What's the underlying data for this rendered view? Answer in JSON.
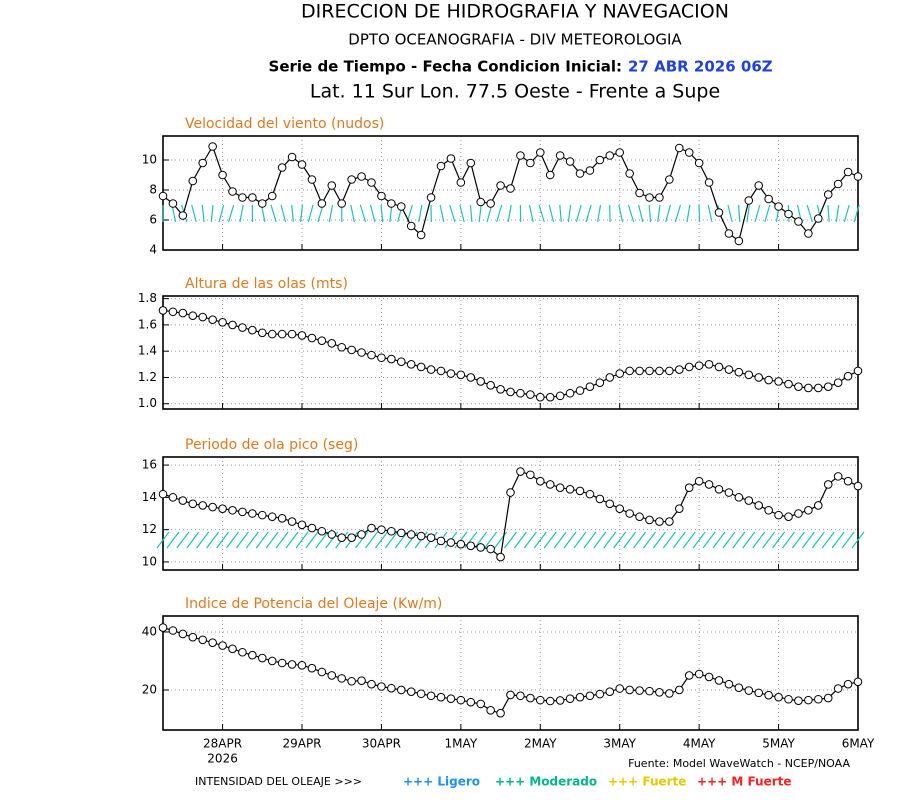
{
  "header": {
    "title": "DIRECCION DE HIDROGRAFIA Y NAVEGACION",
    "subtitle": "DPTO OCEANOGRAFIA - DIV METEOROLOGIA",
    "series_label": "Serie de Tiempo - Fecha Condicion Inicial:",
    "init_date": "27 ABR 2026 06Z",
    "location": "Lat. 11 Sur  Lon. 77.5 Oeste - Frente a Supe"
  },
  "chart_data": [
    {
      "type": "line",
      "title": "Velocidad del viento (nudos)",
      "color": "#000000",
      "marker": "circle",
      "grid": true,
      "x": [
        0,
        3,
        6,
        9,
        12,
        15,
        18,
        21,
        24,
        27,
        30,
        33,
        36,
        39,
        42,
        45,
        48,
        51,
        54,
        57,
        60,
        63,
        66,
        69,
        72,
        75,
        78,
        81,
        84,
        87,
        90,
        93,
        96,
        99,
        102,
        105,
        108,
        111,
        114,
        117,
        120,
        123,
        126,
        129,
        132,
        135,
        138,
        141,
        144,
        147,
        150,
        153,
        156,
        159,
        162,
        165,
        168,
        171,
        174,
        177,
        180,
        183,
        186,
        189,
        192,
        195,
        198,
        201,
        204,
        207,
        210
      ],
      "values": [
        7.6,
        7.1,
        6.3,
        8.6,
        9.8,
        10.9,
        9.0,
        7.9,
        7.5,
        7.5,
        7.1,
        7.6,
        9.5,
        10.2,
        9.7,
        8.7,
        7.1,
        8.3,
        7.1,
        8.7,
        8.9,
        8.5,
        7.6,
        7.1,
        6.9,
        5.6,
        5.0,
        7.5,
        9.6,
        10.1,
        8.5,
        9.8,
        7.2,
        7.1,
        8.3,
        8.1,
        10.3,
        9.8,
        10.5,
        9.0,
        10.3,
        9.9,
        9.1,
        9.3,
        10.0,
        10.3,
        10.5,
        9.1,
        7.8,
        7.5,
        7.5,
        8.7,
        10.8,
        10.5,
        9.8,
        8.5,
        6.5,
        5.1,
        4.6,
        7.3,
        8.3,
        7.4,
        6.9,
        6.4,
        5.9,
        5.1,
        6.1,
        7.7,
        8.4,
        9.2,
        8.9
      ],
      "xlim": [
        0,
        210
      ],
      "xticks": [
        18,
        42,
        66,
        90,
        114,
        138,
        162,
        186,
        210
      ],
      "ylim": [
        4,
        11.6
      ],
      "yticks": [
        4,
        6,
        8,
        10
      ]
    },
    {
      "type": "line",
      "title": "Altura de las olas (mts)",
      "color": "#000000",
      "marker": "circle",
      "grid": true,
      "x": [
        0,
        3,
        6,
        9,
        12,
        15,
        18,
        21,
        24,
        27,
        30,
        33,
        36,
        39,
        42,
        45,
        48,
        51,
        54,
        57,
        60,
        63,
        66,
        69,
        72,
        75,
        78,
        81,
        84,
        87,
        90,
        93,
        96,
        99,
        102,
        105,
        108,
        111,
        114,
        117,
        120,
        123,
        126,
        129,
        132,
        135,
        138,
        141,
        144,
        147,
        150,
        153,
        156,
        159,
        162,
        165,
        168,
        171,
        174,
        177,
        180,
        183,
        186,
        189,
        192,
        195,
        198,
        201,
        204,
        207,
        210
      ],
      "values": [
        1.71,
        1.7,
        1.69,
        1.67,
        1.66,
        1.64,
        1.62,
        1.6,
        1.58,
        1.56,
        1.54,
        1.53,
        1.53,
        1.53,
        1.52,
        1.5,
        1.48,
        1.46,
        1.43,
        1.41,
        1.39,
        1.37,
        1.35,
        1.34,
        1.32,
        1.3,
        1.28,
        1.26,
        1.25,
        1.23,
        1.22,
        1.2,
        1.17,
        1.14,
        1.11,
        1.09,
        1.08,
        1.07,
        1.05,
        1.05,
        1.06,
        1.08,
        1.1,
        1.13,
        1.16,
        1.2,
        1.23,
        1.25,
        1.25,
        1.25,
        1.25,
        1.25,
        1.26,
        1.28,
        1.29,
        1.3,
        1.28,
        1.26,
        1.24,
        1.22,
        1.2,
        1.18,
        1.17,
        1.15,
        1.13,
        1.12,
        1.12,
        1.13,
        1.16,
        1.21,
        1.25
      ],
      "xlim": [
        0,
        210
      ],
      "xticks": [
        18,
        42,
        66,
        90,
        114,
        138,
        162,
        186,
        210
      ],
      "ylim": [
        0.96,
        1.82
      ],
      "yticks": [
        {
          "value": 1,
          "label": "1.0"
        },
        1.2,
        1.4,
        1.6,
        1.8
      ]
    },
    {
      "type": "line",
      "title": "Periodo de ola pico (seg)",
      "color": "#000000",
      "marker": "circle",
      "grid": true,
      "x": [
        0,
        3,
        6,
        9,
        12,
        15,
        18,
        21,
        24,
        27,
        30,
        33,
        36,
        39,
        42,
        45,
        48,
        51,
        54,
        57,
        60,
        63,
        66,
        69,
        72,
        75,
        78,
        81,
        84,
        87,
        90,
        93,
        96,
        99,
        102,
        105,
        108,
        111,
        114,
        117,
        120,
        123,
        126,
        129,
        132,
        135,
        138,
        141,
        144,
        147,
        150,
        153,
        156,
        159,
        162,
        165,
        168,
        171,
        174,
        177,
        180,
        183,
        186,
        189,
        192,
        195,
        198,
        201,
        204,
        207,
        210
      ],
      "values": [
        14.2,
        14.0,
        13.8,
        13.6,
        13.5,
        13.4,
        13.3,
        13.2,
        13.1,
        13.0,
        12.9,
        12.8,
        12.7,
        12.5,
        12.3,
        12.1,
        11.9,
        11.7,
        11.5,
        11.5,
        11.7,
        12.1,
        12.0,
        11.9,
        11.8,
        11.7,
        11.6,
        11.5,
        11.3,
        11.2,
        11.1,
        11.0,
        10.9,
        10.8,
        10.3,
        14.3,
        15.6,
        15.4,
        15.0,
        14.8,
        14.6,
        14.5,
        14.4,
        14.2,
        13.9,
        13.6,
        13.3,
        13.0,
        12.8,
        12.6,
        12.5,
        12.5,
        13.3,
        14.6,
        15.0,
        14.8,
        14.5,
        14.3,
        14.0,
        13.8,
        13.5,
        13.2,
        12.9,
        12.8,
        13.0,
        13.2,
        13.5,
        14.8,
        15.3,
        15.0,
        14.7
      ],
      "xlim": [
        0,
        210
      ],
      "xticks": [
        18,
        42,
        66,
        90,
        114,
        138,
        162,
        186,
        210
      ],
      "ylim": [
        9.5,
        16.5
      ],
      "yticks": [
        10,
        12,
        14,
        16
      ]
    },
    {
      "type": "line",
      "title": "Indice de Potencia del Oleaje (Kw/m)",
      "color": "#000000",
      "marker": "circle",
      "grid": true,
      "x": [
        0,
        3,
        6,
        9,
        12,
        15,
        18,
        21,
        24,
        27,
        30,
        33,
        36,
        39,
        42,
        45,
        48,
        51,
        54,
        57,
        60,
        63,
        66,
        69,
        72,
        75,
        78,
        81,
        84,
        87,
        90,
        93,
        96,
        99,
        102,
        105,
        108,
        111,
        114,
        117,
        120,
        123,
        126,
        129,
        132,
        135,
        138,
        141,
        144,
        147,
        150,
        153,
        156,
        159,
        162,
        165,
        168,
        171,
        174,
        177,
        180,
        183,
        186,
        189,
        192,
        195,
        198,
        201,
        204,
        207,
        210
      ],
      "values": [
        41.5,
        40.5,
        39.3,
        38.2,
        37.3,
        36.3,
        35.3,
        34.2,
        33.0,
        32.0,
        31.0,
        30.0,
        29.3,
        28.8,
        28.5,
        27.5,
        26.2,
        25.0,
        24.0,
        23.0,
        23.2,
        22.0,
        21.2,
        20.6,
        20.0,
        19.4,
        18.7,
        18.0,
        17.5,
        17.0,
        16.5,
        15.8,
        15.2,
        13.0,
        12.0,
        18.3,
        18.0,
        17.2,
        16.5,
        16.2,
        16.4,
        17.0,
        17.5,
        18.0,
        18.6,
        19.4,
        20.5,
        20.0,
        19.8,
        19.6,
        19.2,
        18.8,
        20.0,
        25.0,
        25.5,
        24.5,
        23.3,
        22.0,
        20.8,
        19.8,
        19.0,
        18.2,
        17.5,
        16.8,
        16.3,
        16.5,
        16.8,
        17.2,
        20.5,
        22.0,
        22.8
      ],
      "xlim": [
        0,
        210
      ],
      "xticks": [
        {
          "value": 18,
          "label": "28APR"
        },
        {
          "value": 42,
          "label": "29APR"
        },
        {
          "value": 66,
          "label": "30APR"
        },
        {
          "value": 90,
          "label": "1MAY"
        },
        {
          "value": 114,
          "label": "2MAY"
        },
        {
          "value": 138,
          "label": "3MAY"
        },
        {
          "value": 162,
          "label": "4MAY"
        },
        {
          "value": 186,
          "label": "5MAY"
        },
        {
          "value": 210,
          "label": "6MAY"
        }
      ],
      "year_label": "2026",
      "ylim": [
        6.2,
        45.5
      ],
      "yticks": [
        20,
        40
      ]
    }
  ],
  "footer": {
    "source": "Fuente: Model WaveWatch - NCEP/NOAA",
    "legend_title": "INTENSIDAD DEL OLEAJE >>>",
    "legend": [
      {
        "label": "+++ Ligero",
        "color": "#1e90ff"
      },
      {
        "label": "+++ Moderado",
        "color": "#00b48c"
      },
      {
        "label": "+++ Fuerte",
        "color": "#e6c800"
      },
      {
        "label": "+++ M Fuerte",
        "color": "#ff2020"
      }
    ]
  }
}
